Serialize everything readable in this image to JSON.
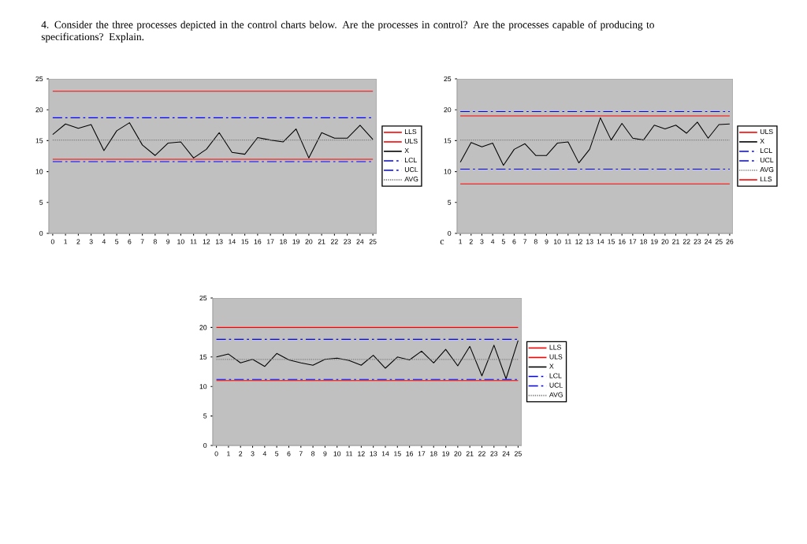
{
  "chart_data": [
    {
      "type": "line",
      "title": "4.   Consider the three processes depicted in the control charts below.  Are the processes in control? Are the processes capable of producing to specifications? Explain.",
      "categories": [
        "0",
        "1",
        "2",
        "3",
        "4",
        "5",
        "6",
        "7",
        "8",
        "9",
        "10",
        "11",
        "12",
        "13",
        "14",
        "15",
        "16",
        "17",
        "18",
        "19",
        "20",
        "21",
        "22",
        "23",
        "24",
        "25"
      ],
      "ylim": [
        0,
        25
      ],
      "yticks": [
        0,
        5,
        10,
        15,
        20,
        25
      ],
      "legend": "right",
      "marker": "none",
      "series": [
        {
          "name": "LLS",
          "color": "#ff0000",
          "line_style": "solid",
          "values": [
            12,
            12,
            12,
            12,
            12,
            12,
            12,
            12,
            12,
            12,
            12,
            12,
            12,
            12,
            12,
            12,
            12,
            12,
            12,
            12,
            12,
            12,
            12,
            12,
            12,
            12
          ]
        },
        {
          "name": "ULS",
          "color": "#ff0000",
          "line_style": "solid",
          "values": [
            23,
            23,
            23,
            23,
            23,
            23,
            23,
            23,
            23,
            23,
            23,
            23,
            23,
            23,
            23,
            23,
            23,
            23,
            23,
            23,
            23,
            23,
            23,
            23,
            23,
            23
          ]
        },
        {
          "name": "X",
          "color": "#000000",
          "line_style": "solid",
          "values": [
            16,
            17.7,
            17,
            17.6,
            13.4,
            16.6,
            17.9,
            14.3,
            12.6,
            14.6,
            14.8,
            12.2,
            13.6,
            16.3,
            13.1,
            12.8,
            15.5,
            15.1,
            14.8,
            16.9,
            12.2,
            16.3,
            15.4,
            15.4,
            17.5,
            15.2
          ]
        },
        {
          "name": "LCL",
          "color": "#0000ff",
          "line_style": "dashdot",
          "values": [
            11.6,
            11.6,
            11.6,
            11.6,
            11.6,
            11.6,
            11.6,
            11.6,
            11.6,
            11.6,
            11.6,
            11.6,
            11.6,
            11.6,
            11.6,
            11.6,
            11.6,
            11.6,
            11.6,
            11.6,
            11.6,
            11.6,
            11.6,
            11.6,
            11.6,
            11.6
          ]
        },
        {
          "name": "UCL",
          "color": "#0000ff",
          "line_style": "dashdot",
          "values": [
            18.7,
            18.7,
            18.7,
            18.7,
            18.7,
            18.7,
            18.7,
            18.7,
            18.7,
            18.7,
            18.7,
            18.7,
            18.7,
            18.7,
            18.7,
            18.7,
            18.7,
            18.7,
            18.7,
            18.7,
            18.7,
            18.7,
            18.7,
            18.7,
            18.7,
            18.7
          ]
        },
        {
          "name": "AVG",
          "color": "#808080",
          "line_style": "dotted",
          "values": [
            15.1,
            15.1,
            15.1,
            15.1,
            15.1,
            15.1,
            15.1,
            15.1,
            15.1,
            15.1,
            15.1,
            15.1,
            15.1,
            15.1,
            15.1,
            15.1,
            15.1,
            15.1,
            15.1,
            15.1,
            15.1,
            15.1,
            15.1,
            15.1,
            15.1,
            15.1
          ]
        }
      ]
    },
    {
      "type": "line",
      "annotations": [
        "c"
      ],
      "categories": [
        "1",
        "2",
        "3",
        "4",
        "5",
        "6",
        "7",
        "8",
        "9",
        "10",
        "11",
        "12",
        "13",
        "14",
        "15",
        "16",
        "17",
        "18",
        "19",
        "20",
        "21",
        "22",
        "23",
        "24",
        "25",
        "26"
      ],
      "ylim": [
        0,
        25
      ],
      "yticks": [
        0,
        5,
        10,
        15,
        20,
        25
      ],
      "legend": "right",
      "marker": "none",
      "series": [
        {
          "name": "ULS",
          "color": "#ff0000",
          "line_style": "solid",
          "values": [
            19,
            19,
            19,
            19,
            19,
            19,
            19,
            19,
            19,
            19,
            19,
            19,
            19,
            19,
            19,
            19,
            19,
            19,
            19,
            19,
            19,
            19,
            19,
            19,
            19,
            19
          ]
        },
        {
          "name": "X",
          "color": "#000000",
          "line_style": "solid",
          "values": [
            11.5,
            14.7,
            14,
            14.6,
            11,
            13.6,
            14.5,
            12.6,
            12.6,
            14.6,
            14.8,
            11.4,
            13.6,
            18.7,
            15.1,
            17.8,
            15.4,
            15.1,
            17.5,
            16.9,
            17.5,
            16.2,
            18,
            15.4,
            17.6,
            17.7
          ]
        },
        {
          "name": "LCL",
          "color": "#0000ff",
          "line_style": "dashdot",
          "values": [
            10.4,
            10.4,
            10.4,
            10.4,
            10.4,
            10.4,
            10.4,
            10.4,
            10.4,
            10.4,
            10.4,
            10.4,
            10.4,
            10.4,
            10.4,
            10.4,
            10.4,
            10.4,
            10.4,
            10.4,
            10.4,
            10.4,
            10.4,
            10.4,
            10.4,
            10.4
          ]
        },
        {
          "name": "UCL",
          "color": "#0000ff",
          "line_style": "dashdot",
          "values": [
            19.7,
            19.7,
            19.7,
            19.7,
            19.7,
            19.7,
            19.7,
            19.7,
            19.7,
            19.7,
            19.7,
            19.7,
            19.7,
            19.7,
            19.7,
            19.7,
            19.7,
            19.7,
            19.7,
            19.7,
            19.7,
            19.7,
            19.7,
            19.7,
            19.7,
            19.7
          ]
        },
        {
          "name": "AVG",
          "color": "#808080",
          "line_style": "dotted",
          "values": [
            15.1,
            15.1,
            15.1,
            15.1,
            15.1,
            15.1,
            15.1,
            15.1,
            15.1,
            15.1,
            15.1,
            15.1,
            15.1,
            15.1,
            15.1,
            15.1,
            15.1,
            15.1,
            15.1,
            15.1,
            15.1,
            15.1,
            15.1,
            15.1,
            15.1,
            15.1
          ]
        },
        {
          "name": "LLS",
          "color": "#ff0000",
          "line_style": "solid",
          "values": [
            8,
            8,
            8,
            8,
            8,
            8,
            8,
            8,
            8,
            8,
            8,
            8,
            8,
            8,
            8,
            8,
            8,
            8,
            8,
            8,
            8,
            8,
            8,
            8,
            8,
            8
          ]
        }
      ]
    },
    {
      "type": "line",
      "categories": [
        "0",
        "1",
        "2",
        "3",
        "4",
        "5",
        "6",
        "7",
        "8",
        "9",
        "10",
        "11",
        "12",
        "13",
        "14",
        "15",
        "16",
        "17",
        "18",
        "19",
        "20",
        "21",
        "22",
        "23",
        "24",
        "25"
      ],
      "ylim": [
        0,
        25
      ],
      "yticks": [
        0,
        5,
        10,
        15,
        20,
        25
      ],
      "legend": "right",
      "marker": "none",
      "series": [
        {
          "name": "LLS",
          "color": "#ff0000",
          "line_style": "solid",
          "values": [
            11,
            11,
            11,
            11,
            11,
            11,
            11,
            11,
            11,
            11,
            11,
            11,
            11,
            11,
            11,
            11,
            11,
            11,
            11,
            11,
            11,
            11,
            11,
            11,
            11,
            11
          ]
        },
        {
          "name": "ULS",
          "color": "#ff0000",
          "line_style": "solid",
          "values": [
            20,
            20,
            20,
            20,
            20,
            20,
            20,
            20,
            20,
            20,
            20,
            20,
            20,
            20,
            20,
            20,
            20,
            20,
            20,
            20,
            20,
            20,
            20,
            20,
            20,
            20
          ]
        },
        {
          "name": "X",
          "color": "#000000",
          "line_style": "solid",
          "values": [
            15,
            15.5,
            14,
            14.6,
            13.4,
            15.6,
            14.5,
            14,
            13.6,
            14.6,
            14.8,
            14.4,
            13.6,
            15.3,
            13.1,
            15,
            14.5,
            16,
            14,
            16.3,
            13.5,
            16.8,
            11.8,
            17,
            11.3,
            17.8
          ]
        },
        {
          "name": "LCL",
          "color": "#0000ff",
          "line_style": "dashdot",
          "values": [
            11.2,
            11.2,
            11.2,
            11.2,
            11.2,
            11.2,
            11.2,
            11.2,
            11.2,
            11.2,
            11.2,
            11.2,
            11.2,
            11.2,
            11.2,
            11.2,
            11.2,
            11.2,
            11.2,
            11.2,
            11.2,
            11.2,
            11.2,
            11.2,
            11.2,
            11.2
          ]
        },
        {
          "name": "UCL",
          "color": "#0000ff",
          "line_style": "dashdot",
          "values": [
            18,
            18,
            18,
            18,
            18,
            18,
            18,
            18,
            18,
            18,
            18,
            18,
            18,
            18,
            18,
            18,
            18,
            18,
            18,
            18,
            18,
            18,
            18,
            18,
            18,
            18
          ]
        },
        {
          "name": "AVG",
          "color": "#808080",
          "line_style": "dotted",
          "values": [
            14.6,
            14.6,
            14.6,
            14.6,
            14.6,
            14.6,
            14.6,
            14.6,
            14.6,
            14.6,
            14.6,
            14.6,
            14.6,
            14.6,
            14.6,
            14.6,
            14.6,
            14.6,
            14.6,
            14.6,
            14.6,
            14.6,
            14.6,
            14.6,
            14.6,
            14.6
          ]
        }
      ]
    }
  ]
}
